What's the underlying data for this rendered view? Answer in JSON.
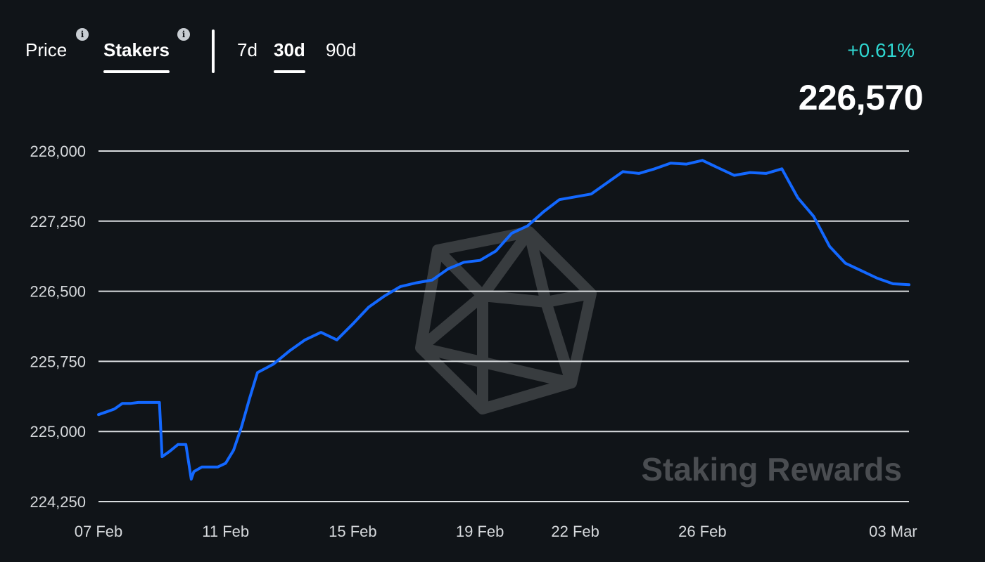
{
  "tabs": {
    "metrics": [
      {
        "label": "Price",
        "active": false,
        "info_icon": "info-icon"
      },
      {
        "label": "Stakers",
        "active": true,
        "info_icon": "info-icon"
      }
    ],
    "ranges": [
      {
        "label": "7d",
        "active": false
      },
      {
        "label": "30d",
        "active": true
      },
      {
        "label": "90d",
        "active": false
      }
    ]
  },
  "summary": {
    "change": "+0.61%",
    "current": "226,570"
  },
  "watermark": {
    "text": "Staking Rewards",
    "logo": "staking-rewards-logo"
  },
  "colors": {
    "background": "#101418",
    "line": "#1368ff",
    "change_positive": "#2fd6d0",
    "grid": "#d9dcdf"
  },
  "chart_data": {
    "type": "line",
    "title": "",
    "xlabel": "",
    "ylabel": "",
    "ylim": [
      224250,
      228000
    ],
    "yticks": [
      224250,
      225000,
      225750,
      226500,
      227250,
      228000
    ],
    "ytick_labels": [
      "224,250",
      "225,000",
      "225,750",
      "226,500",
      "227,250",
      "228,000"
    ],
    "xticks": [
      {
        "date": "2024-02-07",
        "label": "07 Feb"
      },
      {
        "date": "2024-02-11",
        "label": "11 Feb"
      },
      {
        "date": "2024-02-15",
        "label": "15 Feb"
      },
      {
        "date": "2024-02-19",
        "label": "19 Feb"
      },
      {
        "date": "2024-02-22",
        "label": "22 Feb"
      },
      {
        "date": "2024-02-26",
        "label": "26 Feb"
      },
      {
        "date": "2024-03-03",
        "label": "03 Mar"
      }
    ],
    "grid": true,
    "legend": "none",
    "series": [
      {
        "name": "",
        "x": [
          "2024-02-07T00:00",
          "2024-02-07T06:00",
          "2024-02-07T12:00",
          "2024-02-07T18:00",
          "2024-02-08T00:00",
          "2024-02-08T06:00",
          "2024-02-08T12:00",
          "2024-02-08T18:00",
          "2024-02-08T22:00",
          "2024-02-09T00:00",
          "2024-02-09T06:00",
          "2024-02-09T12:00",
          "2024-02-09T18:00",
          "2024-02-09T22:00",
          "2024-02-10T00:00",
          "2024-02-10T06:00",
          "2024-02-10T12:00",
          "2024-02-10T18:00",
          "2024-02-11T00:00",
          "2024-02-11T06:00",
          "2024-02-11T12:00",
          "2024-02-11T18:00",
          "2024-02-12T00:00",
          "2024-02-12T12:00",
          "2024-02-13T00:00",
          "2024-02-13T12:00",
          "2024-02-14T00:00",
          "2024-02-14T12:00",
          "2024-02-15T00:00",
          "2024-02-15T12:00",
          "2024-02-16T00:00",
          "2024-02-16T12:00",
          "2024-02-17T00:00",
          "2024-02-17T12:00",
          "2024-02-18T00:00",
          "2024-02-18T12:00",
          "2024-02-19T00:00",
          "2024-02-19T12:00",
          "2024-02-20T00:00",
          "2024-02-20T12:00",
          "2024-02-21T00:00",
          "2024-02-21T12:00",
          "2024-02-22T00:00",
          "2024-02-22T12:00",
          "2024-02-23T00:00",
          "2024-02-23T12:00",
          "2024-02-24T00:00",
          "2024-02-24T12:00",
          "2024-02-25T00:00",
          "2024-02-25T12:00",
          "2024-02-26T00:00",
          "2024-02-26T12:00",
          "2024-02-27T00:00",
          "2024-02-27T12:00",
          "2024-02-28T00:00",
          "2024-02-28T12:00",
          "2024-02-29T00:00",
          "2024-02-29T12:00",
          "2024-03-01T00:00",
          "2024-03-01T12:00",
          "2024-03-02T00:00",
          "2024-03-02T12:00",
          "2024-03-03T00:00",
          "2024-03-03T12:00"
        ],
        "values": [
          225180,
          225210,
          225240,
          225300,
          225300,
          225310,
          225310,
          225310,
          225310,
          224730,
          224790,
          224860,
          224860,
          224490,
          224570,
          224620,
          224620,
          224620,
          224660,
          224800,
          225050,
          225350,
          225630,
          225720,
          225860,
          225980,
          226060,
          225980,
          226150,
          226330,
          226450,
          226550,
          226590,
          226620,
          226740,
          226810,
          226830,
          226930,
          227120,
          227200,
          227350,
          227480,
          227510,
          227540,
          227660,
          227780,
          227760,
          227810,
          227870,
          227860,
          227900,
          227820,
          227740,
          227770,
          227760,
          227810,
          227500,
          227300,
          226980,
          226800,
          226720,
          226640,
          226580,
          226570
        ]
      }
    ]
  }
}
